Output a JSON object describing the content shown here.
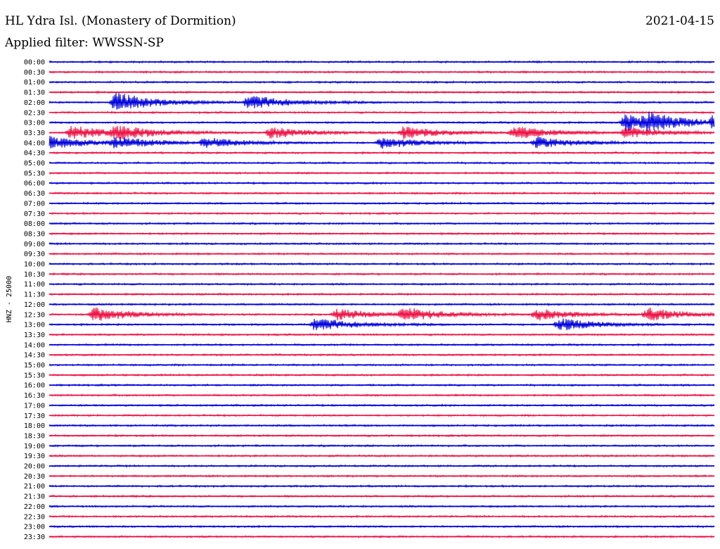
{
  "header": {
    "station": "HL Ydra Isl. (Monastery of Dormition)",
    "date": "2021-04-15",
    "filter": "Applied filter: WWSSN-SP"
  },
  "chart_data": {
    "type": "line",
    "title": "HL Ydra Isl. (Monastery of Dormition)",
    "subtitle": "Applied filter: WWSSN-SP",
    "date": "2021-04-15",
    "ylabel": "HNZ - 25000",
    "trace_colors": [
      "#0000dd",
      "#ee1144"
    ],
    "tick_labels": [
      "00:00",
      "00:30",
      "01:00",
      "01:30",
      "02:00",
      "02:30",
      "03:00",
      "03:30",
      "04:00",
      "04:30",
      "05:00",
      "05:30",
      "06:00",
      "06:30",
      "07:00",
      "07:30",
      "08:00",
      "08:30",
      "09:00",
      "09:30",
      "10:00",
      "10:30",
      "11:00",
      "11:30",
      "12:00",
      "12:30",
      "13:00",
      "13:30",
      "14:00",
      "14:30",
      "15:00",
      "15:30",
      "16:00",
      "16:30",
      "17:00",
      "17:30",
      "18:00",
      "18:30",
      "19:00",
      "19:30",
      "20:00",
      "20:30",
      "21:00",
      "21:30",
      "22:00",
      "22:30",
      "23:00",
      "23:30"
    ],
    "events": [
      {
        "row": 4,
        "minute": 3,
        "amp": 14
      },
      {
        "row": 4,
        "minute": 9,
        "amp": 10
      },
      {
        "row": 6,
        "minute": 26,
        "amp": 12
      },
      {
        "row": 6,
        "minute": 27,
        "amp": 9
      },
      {
        "row": 6,
        "minute": 30,
        "amp": 11
      },
      {
        "row": 7,
        "minute": 1,
        "amp": 10
      },
      {
        "row": 7,
        "minute": 3,
        "amp": 9
      },
      {
        "row": 7,
        "minute": 10,
        "amp": 8
      },
      {
        "row": 7,
        "minute": 16,
        "amp": 9
      },
      {
        "row": 7,
        "minute": 21,
        "amp": 9
      },
      {
        "row": 7,
        "minute": 26,
        "amp": 8
      },
      {
        "row": 8,
        "minute": 0,
        "amp": 9
      },
      {
        "row": 8,
        "minute": 3,
        "amp": 8
      },
      {
        "row": 8,
        "minute": 7,
        "amp": 7
      },
      {
        "row": 8,
        "minute": 15,
        "amp": 8
      },
      {
        "row": 8,
        "minute": 22,
        "amp": 8
      },
      {
        "row": 25,
        "minute": 2,
        "amp": 10
      },
      {
        "row": 26,
        "minute": 12,
        "amp": 9
      },
      {
        "row": 26,
        "minute": 23,
        "amp": 9
      },
      {
        "row": 25,
        "minute": 13,
        "amp": 8
      },
      {
        "row": 25,
        "minute": 16,
        "amp": 9
      },
      {
        "row": 25,
        "minute": 22,
        "amp": 8
      },
      {
        "row": 25,
        "minute": 27,
        "amp": 9
      }
    ]
  }
}
